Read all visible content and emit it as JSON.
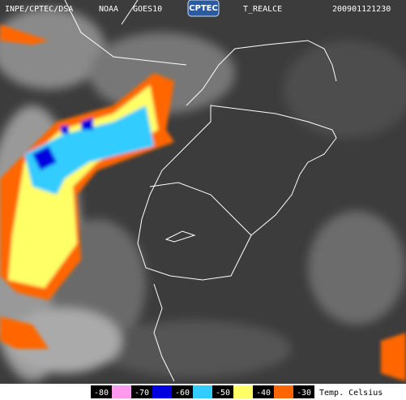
{
  "header": {
    "source": "INPE/CPTEC/DSA",
    "agency": "NOAA",
    "satellite": "GOES10",
    "logo": "CPTEC",
    "product": "T_REALCE",
    "timestamp": "200901121230"
  },
  "legend": {
    "labels": [
      -80,
      -70,
      -60,
      -50,
      -40,
      -30
    ],
    "colors": [
      "#ff99ee",
      "#0000e0",
      "#33ccff",
      "#ffff66",
      "#ff6600"
    ],
    "unit": "Temp. Celsius"
  }
}
